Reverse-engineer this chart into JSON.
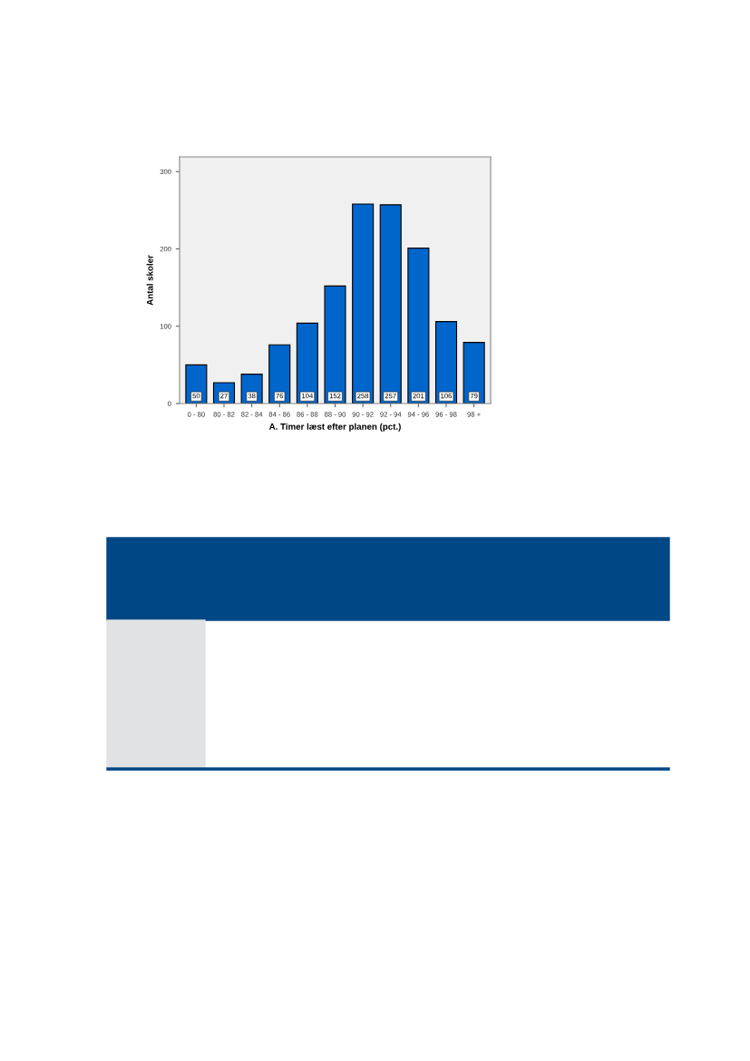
{
  "chart_data": {
    "type": "bar",
    "xlabel": "A. Timer læst efter planen (pct.)",
    "ylabel": "Antal skoler",
    "categories": [
      "0 - 80",
      "80 - 82",
      "82 - 84",
      "84 - 86",
      "86 - 88",
      "88 - 90",
      "90 - 92",
      "92 - 94",
      "94 - 96",
      "96 - 98",
      "98 +"
    ],
    "values": [
      50,
      27,
      38,
      76,
      104,
      152,
      258,
      257,
      201,
      106,
      79
    ],
    "color": "#0066cc",
    "ylim": [
      0,
      319
    ],
    "yticks": [
      0,
      100,
      200,
      300
    ],
    "grid": false,
    "data_labels": true
  }
}
